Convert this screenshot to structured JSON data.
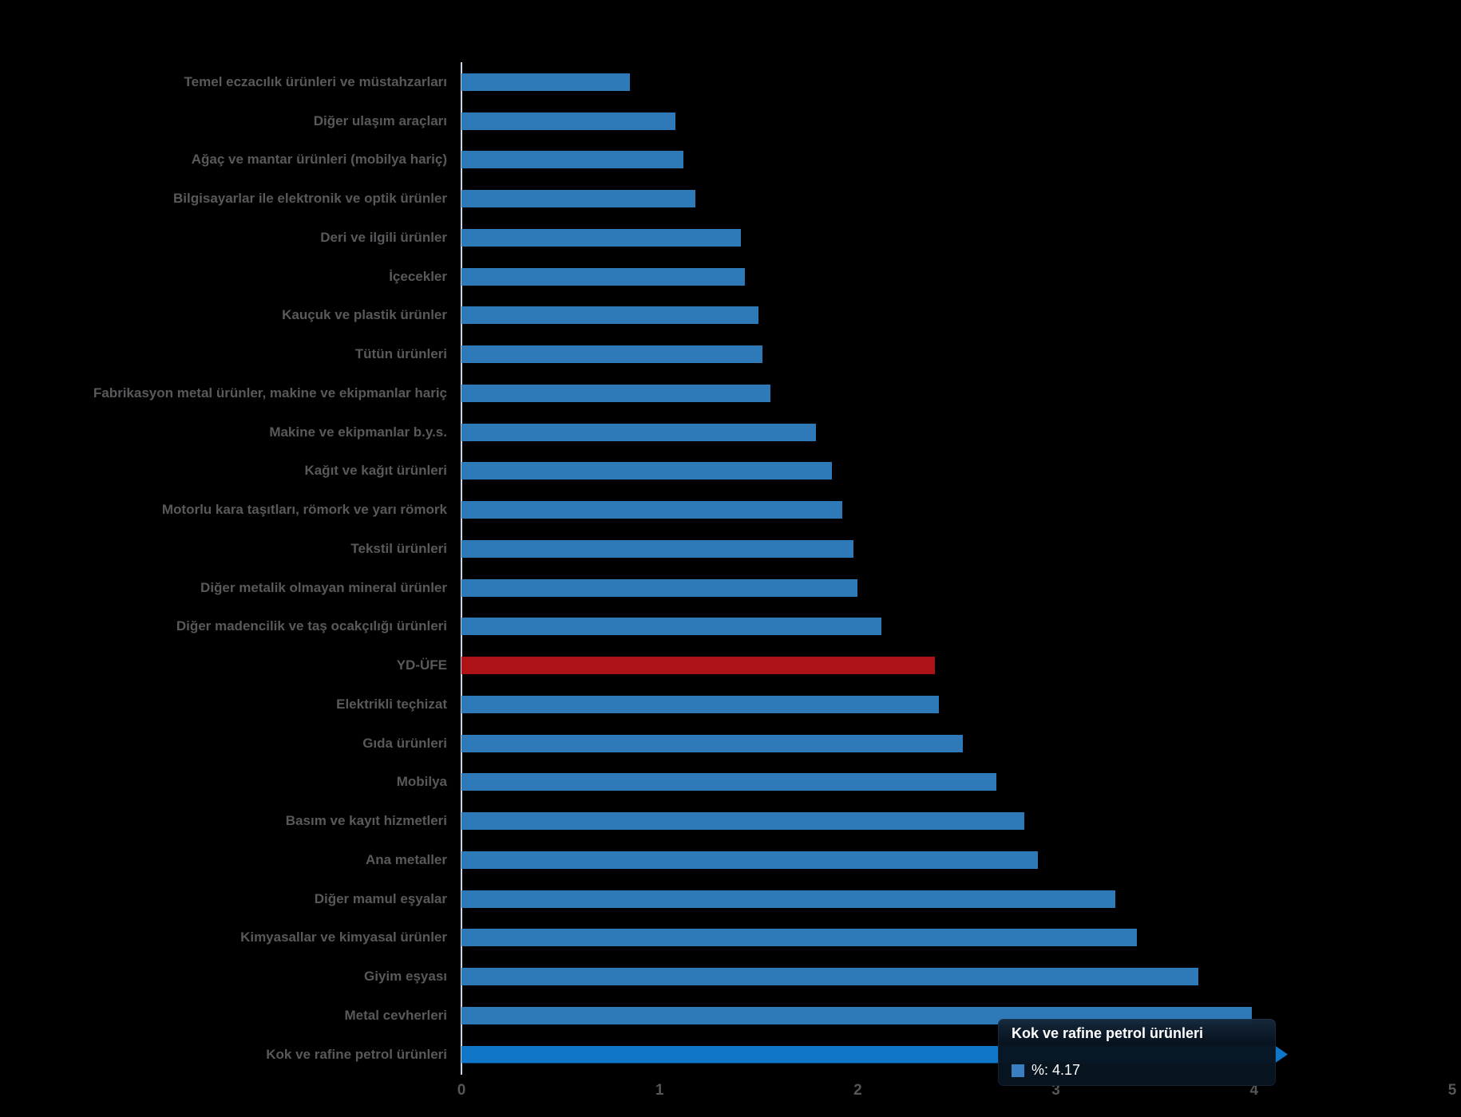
{
  "chart_data": {
    "type": "bar",
    "orientation": "horizontal",
    "title": "",
    "xlabel": "",
    "ylabel": "",
    "xlim": [
      0,
      5
    ],
    "x_ticks": [
      "0",
      "1",
      "2",
      "3",
      "4",
      "5"
    ],
    "grid": false,
    "legend": "none",
    "background_color": "#000000",
    "categories": [
      "Temel eczacılık ürünleri ve müstahzarları",
      "Diğer ulaşım araçları",
      "Ağaç ve mantar ürünleri (mobilya hariç)",
      "Bilgisayarlar ile elektronik ve optik ürünler",
      "Deri ve ilgili ürünler",
      "İçecekler",
      "Kauçuk ve plastik ürünler",
      "Tütün ürünleri",
      "Fabrikasyon metal ürünler, makine ve ekipmanlar hariç",
      "Makine ve ekipmanlar b.y.s.",
      "Kağıt ve kağıt ürünleri",
      "Motorlu kara taşıtları, römork ve yarı römork",
      "Tekstil ürünleri",
      "Diğer metalik olmayan mineral ürünler",
      "Diğer madencilik ve taş ocakçılığı ürünleri",
      "YD-ÜFE",
      "Elektrikli teçhizat",
      "Gıda ürünleri",
      "Mobilya",
      "Basım ve kayıt hizmetleri",
      "Ana metaller",
      "Diğer mamul eşyalar",
      "Kimyasallar ve kimyasal ürünler",
      "Giyim eşyası",
      "Metal cevherleri",
      "Kok ve rafine petrol ürünleri"
    ],
    "values": [
      0.85,
      1.08,
      1.12,
      1.18,
      1.41,
      1.43,
      1.5,
      1.52,
      1.56,
      1.79,
      1.87,
      1.92,
      1.98,
      2.0,
      2.12,
      2.39,
      2.41,
      2.53,
      2.7,
      2.84,
      2.91,
      3.3,
      3.41,
      3.72,
      3.99,
      4.17
    ],
    "series_color": "#2E79B8",
    "emphasis": {
      "red_bar_index": 15,
      "red_bar_color": "#AD1216",
      "hovered_bar_index": 25,
      "hovered_bar_color": "#0F76C8"
    },
    "label_color": "#58595B",
    "axis_line_color": "#CCD6EB"
  },
  "tooltip": {
    "title": "Kok ve rafine petrol ürünleri",
    "value_label": "%: 4.17",
    "marker_color": "#3A7FC1"
  }
}
